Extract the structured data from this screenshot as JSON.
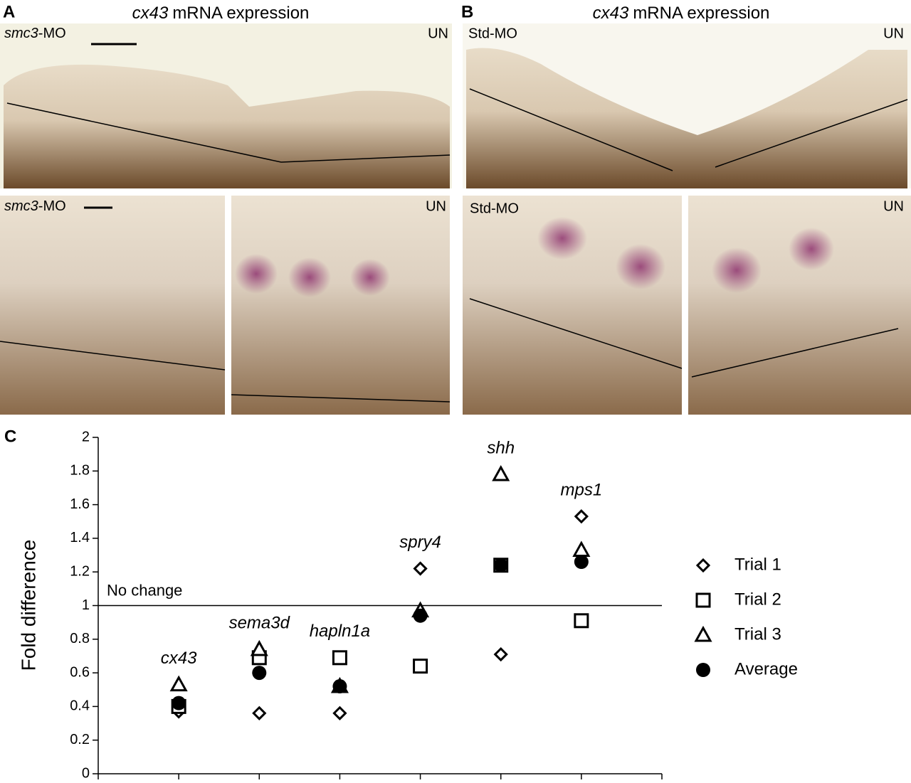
{
  "figure": {
    "panels": [
      {
        "label": "A",
        "title": {
          "gene": "cx43",
          "text": "mRNA expression"
        },
        "top": {
          "left": {
            "gene": "smc3",
            "text": "-MO"
          },
          "right": "UN"
        },
        "bottom_left": {
          "gene": "smc3",
          "text": "-MO"
        },
        "bottom_right": "UN"
      },
      {
        "label": "B",
        "title": {
          "gene": "cx43",
          "text": "mRNA expression"
        },
        "top": {
          "left": "Std-MO",
          "right": "UN"
        },
        "bottom_left": "Std-MO",
        "bottom_right": "UN"
      }
    ],
    "chart_label": "C"
  },
  "chart_data": {
    "type": "scatter",
    "y_label": "Fold difference",
    "categories": [
      "cx43",
      "sema3d",
      "hapln1a",
      "spry4",
      "shh",
      "mps1"
    ],
    "series": [
      {
        "name": "Trial 1",
        "marker": "diamond",
        "color": "#000000",
        "values": [
          0.37,
          0.36,
          0.36,
          1.22,
          0.71,
          1.53
        ]
      },
      {
        "name": "Trial 2",
        "marker": "square",
        "color": "#000000",
        "values": [
          0.4,
          0.69,
          0.69,
          0.64,
          1.24,
          0.91
        ]
      },
      {
        "name": "Trial 3",
        "marker": "triangle",
        "color": "#000000",
        "values": [
          0.53,
          0.74,
          0.52,
          0.97,
          1.78,
          1.33
        ]
      },
      {
        "name": "Average",
        "marker": "circle",
        "color": "#000000",
        "values": [
          0.42,
          0.6,
          0.52,
          0.94,
          1.24,
          1.26
        ]
      }
    ],
    "reference_line": {
      "value": 1,
      "label": "No change"
    },
    "ylim": [
      0,
      2
    ],
    "yticks": [
      0,
      0.2,
      0.4,
      0.6,
      0.8,
      1,
      1.2,
      1.4,
      1.6,
      1.8,
      2
    ],
    "legend": "right"
  }
}
